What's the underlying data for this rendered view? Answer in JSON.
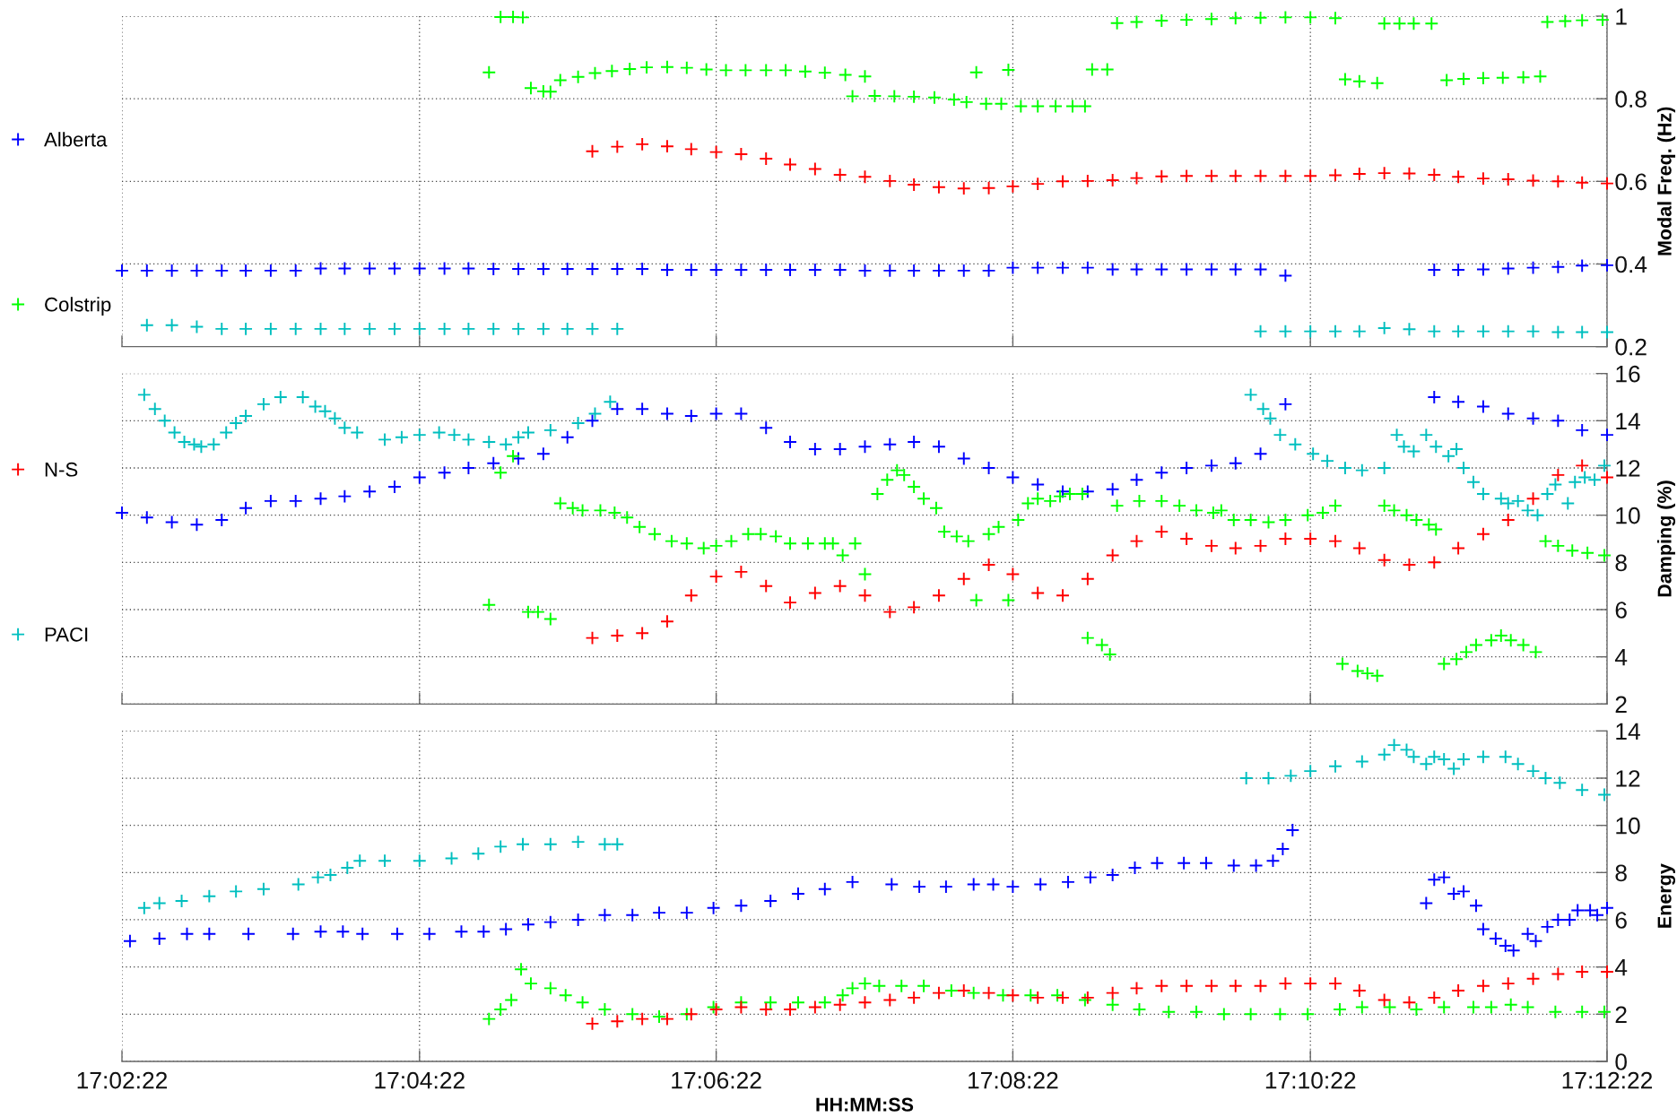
{
  "chart_data": [
    {
      "type": "scatter",
      "ylabel": "Modal Freq. (Hz)",
      "marker": "cross",
      "grid": true,
      "legend": "left",
      "tick_labels": "y",
      "xlim": [
        17.0394,
        17.2061
      ],
      "xticks": [
        {
          "value": 17.0394,
          "label": null
        },
        {
          "value": 17.0728,
          "label": null
        },
        {
          "value": 17.1061,
          "label": null
        },
        {
          "value": 17.1394,
          "label": null
        },
        {
          "value": 17.1728,
          "label": null
        },
        {
          "value": 17.2061,
          "label": null
        }
      ],
      "ylim": [
        0.2,
        1
      ],
      "yticks": [
        0.2,
        0.4,
        0.6,
        0.8,
        1
      ],
      "x": [
        17.0394,
        17.0422,
        17.045,
        17.0478,
        17.0506,
        17.0533,
        17.0561,
        17.0589,
        17.0617,
        17.0644,
        17.0672,
        17.07,
        17.0728,
        17.0756,
        17.0783,
        17.0811,
        17.0839,
        17.0867,
        17.0894,
        17.0922,
        17.095,
        17.0978,
        17.1006,
        17.1033,
        17.1061,
        17.1089,
        17.1117,
        17.1144,
        17.1172,
        17.12,
        17.1228,
        17.1256,
        17.1283,
        17.1311,
        17.1339,
        17.1367,
        17.1394,
        17.1422,
        17.145,
        17.1478,
        17.1506,
        17.1533,
        17.1561,
        17.1589,
        17.1617,
        17.1644,
        17.1672,
        17.17,
        17.1728,
        17.1756,
        17.1783,
        17.1811,
        17.1839,
        17.1867,
        17.1894,
        17.1922,
        17.195,
        17.1978,
        17.2006,
        17.2033,
        17.2061
      ],
      "series": [
        {
          "name": "Alberta",
          "color": "#0000ff",
          "values": [
            0.384,
            0.384,
            0.384,
            0.384,
            0.384,
            0.384,
            0.384,
            0.384,
            0.389,
            0.389,
            0.389,
            0.389,
            0.389,
            0.389,
            0.389,
            0.388,
            0.388,
            0.388,
            0.388,
            0.388,
            0.388,
            0.388,
            0.386,
            0.386,
            0.386,
            0.386,
            0.386,
            0.386,
            0.386,
            0.386,
            0.384,
            0.384,
            0.384,
            0.384,
            0.384,
            0.384,
            0.391,
            0.391,
            0.391,
            0.391,
            0.387,
            0.387,
            0.387,
            0.387,
            0.387,
            0.387,
            0.387,
            0.372,
            null,
            null,
            null,
            null,
            null,
            0.386,
            0.386,
            0.387,
            0.389,
            0.391,
            0.393,
            0.396,
            0.397
          ]
        },
        {
          "name": "Colstrip",
          "color": "#00ff00",
          "x": [
            17.0806,
            17.0819,
            17.0833,
            17.0844,
            17.0853,
            17.0867,
            17.0875,
            17.0886,
            17.0906,
            17.0925,
            17.0944,
            17.0964,
            17.0983,
            17.1006,
            17.1028,
            17.105,
            17.1072,
            17.1094,
            17.1117,
            17.1139,
            17.1161,
            17.1183,
            17.1206,
            17.1214,
            17.1228,
            17.1239,
            17.1261,
            17.1283,
            17.1306,
            17.1328,
            17.1342,
            17.1353,
            17.1364,
            17.1381,
            17.1389,
            17.1403,
            17.1422,
            17.1442,
            17.1461,
            17.1475,
            17.1483,
            17.15,
            17.1511,
            17.1533,
            17.1561,
            17.1589,
            17.1617,
            17.1644,
            17.1672,
            17.17,
            17.1728,
            17.1756,
            17.1767,
            17.1783,
            17.1803,
            17.1811,
            17.1828,
            17.1844,
            17.1864,
            17.1881,
            17.19,
            17.1922,
            17.1944,
            17.1967,
            17.1986,
            17.1994,
            17.2014,
            17.2033,
            17.2056
          ],
          "values": [
            0.864,
            0.998,
            0.998,
            0.997,
            0.826,
            0.818,
            0.817,
            0.845,
            0.853,
            0.862,
            0.867,
            0.872,
            0.876,
            0.877,
            0.875,
            0.871,
            0.869,
            0.869,
            0.869,
            0.869,
            0.866,
            0.863,
            0.858,
            0.806,
            0.854,
            0.807,
            0.806,
            0.805,
            0.803,
            0.798,
            0.792,
            0.864,
            0.788,
            0.788,
            0.87,
            0.782,
            0.782,
            0.782,
            0.782,
            0.782,
            0.871,
            0.871,
            0.983,
            0.986,
            0.989,
            0.991,
            0.993,
            0.995,
            0.996,
            0.997,
            0.997,
            0.995,
            0.847,
            0.842,
            0.838,
            0.982,
            0.982,
            0.982,
            0.982,
            0.845,
            0.848,
            0.85,
            0.851,
            0.852,
            0.854,
            0.986,
            0.988,
            0.99,
            0.991
          ]
        },
        {
          "name": "N-S",
          "color": "#ff0000",
          "values": [
            null,
            null,
            null,
            null,
            null,
            null,
            null,
            null,
            null,
            null,
            null,
            null,
            null,
            null,
            null,
            null,
            null,
            null,
            null,
            0.673,
            0.684,
            0.69,
            0.685,
            0.678,
            0.671,
            0.666,
            0.655,
            0.641,
            0.63,
            0.616,
            0.611,
            0.601,
            0.592,
            0.586,
            0.583,
            0.584,
            0.588,
            0.594,
            0.6,
            0.601,
            0.603,
            0.608,
            0.612,
            0.613,
            0.613,
            0.613,
            0.613,
            0.613,
            0.613,
            0.615,
            0.618,
            0.62,
            0.619,
            0.616,
            0.611,
            0.607,
            0.605,
            0.602,
            0.6,
            0.597,
            0.595
          ]
        },
        {
          "name": "PACI",
          "color": "#00bfbf",
          "values": [
            null,
            0.252,
            0.252,
            0.248,
            0.243,
            0.243,
            0.243,
            0.243,
            0.243,
            0.243,
            0.243,
            0.243,
            0.243,
            0.243,
            0.243,
            0.243,
            0.243,
            0.243,
            0.243,
            0.243,
            0.243,
            null,
            null,
            null,
            null,
            null,
            null,
            null,
            null,
            null,
            null,
            null,
            null,
            null,
            null,
            null,
            null,
            null,
            null,
            null,
            null,
            null,
            null,
            null,
            null,
            null,
            0.237,
            0.237,
            0.237,
            0.237,
            0.237,
            0.245,
            0.242,
            0.237,
            0.237,
            0.237,
            0.237,
            0.237,
            0.235,
            0.235,
            0.235
          ]
        }
      ]
    },
    {
      "type": "scatter",
      "ylabel": "Damping (%)",
      "marker": "cross",
      "grid": true,
      "tick_labels": "y",
      "xlim": [
        17.0394,
        17.2061
      ],
      "xticks": [
        {
          "value": 17.0394,
          "label": null
        },
        {
          "value": 17.0728,
          "label": null
        },
        {
          "value": 17.1061,
          "label": null
        },
        {
          "value": 17.1394,
          "label": null
        },
        {
          "value": 17.1728,
          "label": null
        },
        {
          "value": 17.2061,
          "label": null
        }
      ],
      "ylim": [
        2,
        16
      ],
      "yticks": [
        2,
        4,
        6,
        8,
        10,
        12,
        14,
        16
      ],
      "x": [
        17.0394,
        17.0422,
        17.045,
        17.0478,
        17.0506,
        17.0533,
        17.0561,
        17.0589,
        17.0617,
        17.0644,
        17.0672,
        17.07,
        17.0728,
        17.0756,
        17.0783,
        17.0811,
        17.0839,
        17.0867,
        17.0894,
        17.0922,
        17.095,
        17.0978,
        17.1006,
        17.1033,
        17.1061,
        17.1089,
        17.1117,
        17.1144,
        17.1172,
        17.12,
        17.1228,
        17.1256,
        17.1283,
        17.1311,
        17.1339,
        17.1367,
        17.1394,
        17.1422,
        17.145,
        17.1478,
        17.1506,
        17.1533,
        17.1561,
        17.1589,
        17.1617,
        17.1644,
        17.1672,
        17.17,
        17.1728,
        17.1756,
        17.1783,
        17.1811,
        17.1839,
        17.1867,
        17.1894,
        17.1922,
        17.195,
        17.1978,
        17.2006,
        17.2033,
        17.2061
      ],
      "series": [
        {
          "color": "#0000ff",
          "values": [
            10.1,
            9.9,
            9.7,
            9.6,
            9.8,
            10.3,
            10.6,
            10.6,
            10.7,
            10.8,
            11.0,
            11.2,
            11.6,
            11.8,
            12.0,
            12.2,
            12.4,
            12.6,
            13.3,
            14.0,
            14.5,
            14.5,
            14.3,
            14.2,
            14.3,
            14.3,
            13.7,
            13.1,
            12.8,
            12.8,
            12.9,
            13.0,
            13.1,
            12.9,
            12.4,
            12.0,
            11.6,
            11.3,
            11.0,
            11.0,
            11.1,
            11.5,
            11.8,
            12.0,
            12.1,
            12.2,
            12.6,
            14.7,
            null,
            null,
            null,
            null,
            null,
            15.0,
            14.8,
            14.6,
            14.3,
            14.1,
            14.0,
            13.6,
            13.4
          ]
        },
        {
          "color": "#00ff00",
          "x": [
            17.0806,
            17.0819,
            17.0833,
            17.085,
            17.0861,
            17.0875,
            17.0886,
            17.09,
            17.0911,
            17.0931,
            17.0947,
            17.0961,
            17.0975,
            17.0992,
            17.1011,
            17.1028,
            17.1047,
            17.1061,
            17.1078,
            17.1097,
            17.1111,
            17.1128,
            17.1144,
            17.1164,
            17.1183,
            17.1192,
            17.1203,
            17.1217,
            17.1228,
            17.1242,
            17.1253,
            17.1264,
            17.1272,
            17.1283,
            17.1294,
            17.1308,
            17.1317,
            17.1331,
            17.1344,
            17.1353,
            17.1367,
            17.1378,
            17.1389,
            17.14,
            17.1411,
            17.1422,
            17.1436,
            17.1447,
            17.1458,
            17.1472,
            17.1478,
            17.1494,
            17.1503,
            17.1511,
            17.1536,
            17.1561,
            17.1581,
            17.16,
            17.1619,
            17.1628,
            17.1642,
            17.1661,
            17.1681,
            17.17,
            17.1725,
            17.1742,
            17.1756,
            17.1764,
            17.1781,
            17.1792,
            17.1803,
            17.1811,
            17.1822,
            17.1836,
            17.1847,
            17.1861,
            17.1869,
            17.1878,
            17.1892,
            17.1903,
            17.1914,
            17.1931,
            17.1942,
            17.1953,
            17.1967,
            17.1981,
            17.1992,
            17.2006,
            17.2022,
            17.2039,
            17.2058
          ],
          "values": [
            6.2,
            11.8,
            12.5,
            5.9,
            5.9,
            5.6,
            10.5,
            10.3,
            10.2,
            10.2,
            10.1,
            9.9,
            9.5,
            9.2,
            8.9,
            8.8,
            8.6,
            8.7,
            8.9,
            9.2,
            9.2,
            9.1,
            8.8,
            8.8,
            8.8,
            8.8,
            8.3,
            8.8,
            7.5,
            10.9,
            11.5,
            11.9,
            11.7,
            11.2,
            10.7,
            10.3,
            9.3,
            9.1,
            8.9,
            6.4,
            9.2,
            9.5,
            6.4,
            9.8,
            10.5,
            10.7,
            10.6,
            10.8,
            10.9,
            10.9,
            4.8,
            4.5,
            4.1,
            10.4,
            10.6,
            10.6,
            10.4,
            10.2,
            10.1,
            10.2,
            9.8,
            9.8,
            9.7,
            9.8,
            10.0,
            10.1,
            10.4,
            3.7,
            3.4,
            3.3,
            3.2,
            10.4,
            10.2,
            10.0,
            9.8,
            9.6,
            9.4,
            3.7,
            3.9,
            4.2,
            4.5,
            4.7,
            4.9,
            4.7,
            4.5,
            4.2,
            8.9,
            8.7,
            8.5,
            8.4,
            8.3
          ]
        },
        {
          "color": "#ff0000",
          "values": [
            null,
            null,
            null,
            null,
            null,
            null,
            null,
            null,
            null,
            null,
            null,
            null,
            null,
            null,
            null,
            null,
            null,
            null,
            null,
            4.8,
            4.9,
            5.0,
            5.5,
            6.6,
            7.4,
            7.6,
            7.0,
            6.3,
            6.7,
            7.0,
            6.6,
            5.9,
            6.1,
            6.6,
            7.3,
            7.9,
            7.5,
            6.7,
            6.6,
            7.3,
            8.3,
            8.9,
            9.3,
            9.0,
            8.7,
            8.6,
            8.7,
            9.0,
            9.0,
            8.9,
            8.6,
            8.1,
            7.9,
            8.0,
            8.6,
            9.2,
            9.8,
            10.7,
            11.7,
            12.1,
            11.6
          ]
        },
        {
          "color": "#00bfbf",
          "x": [
            17.0419,
            17.0431,
            17.0442,
            17.0453,
            17.0464,
            17.0475,
            17.0483,
            17.0497,
            17.0511,
            17.0522,
            17.0533,
            17.0553,
            17.0572,
            17.0597,
            17.0611,
            17.0622,
            17.0633,
            17.0644,
            17.0658,
            17.0689,
            17.0708,
            17.0728,
            17.075,
            17.0767,
            17.0783,
            17.0806,
            17.0825,
            17.0839,
            17.085,
            17.0875,
            17.0906,
            17.0925,
            17.0942,
            17.1661,
            17.1675,
            17.1683,
            17.1694,
            17.1711,
            17.1731,
            17.1747,
            17.1767,
            17.1786,
            17.1811,
            17.1825,
            17.1833,
            17.1844,
            17.1858,
            17.1869,
            17.1883,
            17.1892,
            17.19,
            17.1911,
            17.1922,
            17.1942,
            17.195,
            17.1961,
            17.1972,
            17.1983,
            17.1994,
            17.2003,
            17.2017,
            17.2025,
            17.2036,
            17.2047,
            17.2058
          ],
          "values": [
            15.1,
            14.5,
            14.0,
            13.5,
            13.1,
            13.0,
            12.9,
            13.0,
            13.5,
            13.9,
            14.2,
            14.7,
            15.0,
            15.0,
            14.6,
            14.4,
            14.1,
            13.7,
            13.5,
            13.2,
            13.3,
            13.4,
            13.5,
            13.4,
            13.2,
            13.1,
            13.0,
            13.3,
            13.5,
            13.6,
            13.9,
            14.3,
            14.8,
            15.1,
            14.5,
            14.1,
            13.4,
            13.0,
            12.6,
            12.3,
            12.0,
            11.9,
            12.0,
            13.4,
            12.9,
            12.7,
            13.4,
            12.9,
            12.5,
            12.8,
            12.0,
            11.4,
            10.9,
            10.7,
            10.5,
            10.6,
            10.2,
            10.0,
            10.9,
            11.3,
            10.5,
            11.4,
            11.6,
            11.5,
            12.1
          ]
        }
      ]
    },
    {
      "type": "scatter",
      "xlabel": "HH:MM:SS",
      "ylabel": "Energy",
      "marker": "cross",
      "grid": true,
      "xlim": [
        17.0394,
        17.2061
      ],
      "xticks": [
        {
          "value": 17.0394,
          "label": "17:02:22"
        },
        {
          "value": 17.0728,
          "label": "17:04:22"
        },
        {
          "value": 17.1061,
          "label": "17:06:22"
        },
        {
          "value": 17.1394,
          "label": "17:08:22"
        },
        {
          "value": 17.1728,
          "label": "17:10:22"
        },
        {
          "value": 17.2061,
          "label": "17:12:22"
        }
      ],
      "ylim": [
        0,
        14
      ],
      "yticks": [
        0,
        2,
        4,
        6,
        8,
        10,
        12,
        14
      ],
      "series": [
        {
          "color": "#0000ff",
          "x": [
            17.0403,
            17.0436,
            17.0467,
            17.0492,
            17.0536,
            17.0586,
            17.0617,
            17.0642,
            17.0664,
            17.0703,
            17.0739,
            17.0775,
            17.08,
            17.0825,
            17.085,
            17.0875,
            17.0906,
            17.0936,
            17.0967,
            17.0997,
            17.1028,
            17.1058,
            17.1089,
            17.1122,
            17.1153,
            17.1183,
            17.1214,
            17.1258,
            17.1289,
            17.1319,
            17.135,
            17.1372,
            17.1394,
            17.1425,
            17.1456,
            17.1481,
            17.1506,
            17.1531,
            17.1556,
            17.1586,
            17.1611,
            17.1642,
            17.1667,
            17.1686,
            17.1697,
            17.1708,
            17.1858,
            17.1867,
            17.1878,
            17.1889,
            17.19,
            17.1914,
            17.1922,
            17.1936,
            17.1947,
            17.1956,
            17.1972,
            17.1981,
            17.1994,
            17.2006,
            17.2019,
            17.2028,
            17.2042,
            17.205,
            17.2061
          ],
          "values": [
            5.1,
            5.2,
            5.4,
            5.4,
            5.4,
            5.4,
            5.5,
            5.5,
            5.4,
            5.4,
            5.4,
            5.5,
            5.5,
            5.6,
            5.8,
            5.9,
            6.0,
            6.2,
            6.2,
            6.3,
            6.3,
            6.5,
            6.6,
            6.8,
            7.1,
            7.3,
            7.6,
            7.5,
            7.4,
            7.4,
            7.5,
            7.5,
            7.4,
            7.5,
            7.6,
            7.8,
            7.9,
            8.2,
            8.4,
            8.4,
            8.4,
            8.3,
            8.3,
            8.5,
            9.0,
            9.8,
            6.7,
            7.7,
            7.8,
            7.1,
            7.2,
            6.6,
            5.6,
            5.2,
            4.9,
            4.7,
            5.4,
            5.1,
            5.7,
            6.0,
            6.0,
            6.4,
            6.4,
            6.2,
            6.5
          ]
        },
        {
          "color": "#00ff00",
          "x": [
            17.0806,
            17.0819,
            17.0831,
            17.0842,
            17.0853,
            17.0875,
            17.0892,
            17.0911,
            17.0936,
            17.0967,
            17.0997,
            17.1028,
            17.1058,
            17.1089,
            17.1122,
            17.1153,
            17.1183,
            17.1203,
            17.1214,
            17.1228,
            17.1244,
            17.1269,
            17.1294,
            17.1325,
            17.135,
            17.1383,
            17.1414,
            17.1444,
            17.1475,
            17.1506,
            17.1536,
            17.1569,
            17.16,
            17.1631,
            17.1661,
            17.1694,
            17.1725,
            17.1761,
            17.1786,
            17.1817,
            17.1847,
            17.1878,
            17.1911,
            17.1931,
            17.1953,
            17.1972,
            17.2003,
            17.2033,
            17.2058
          ],
          "values": [
            1.8,
            2.2,
            2.6,
            3.9,
            3.3,
            3.1,
            2.8,
            2.5,
            2.2,
            2.0,
            1.9,
            2.0,
            2.3,
            2.5,
            2.5,
            2.5,
            2.5,
            2.8,
            3.1,
            3.3,
            3.2,
            3.2,
            3.2,
            3.0,
            2.9,
            2.8,
            2.8,
            2.8,
            2.6,
            2.4,
            2.2,
            2.1,
            2.1,
            2.0,
            2.0,
            2.0,
            2.0,
            2.2,
            2.3,
            2.3,
            2.2,
            2.3,
            2.3,
            2.3,
            2.4,
            2.3,
            2.1,
            2.1,
            2.1
          ]
        },
        {
          "color": "#ff0000",
          "x": [
            17.0922,
            17.095,
            17.0978,
            17.1006,
            17.1033,
            17.1061,
            17.1089,
            17.1117,
            17.1144,
            17.1172,
            17.12,
            17.1228,
            17.1256,
            17.1283,
            17.1311,
            17.1339,
            17.1367,
            17.1394,
            17.1422,
            17.145,
            17.1478,
            17.1506,
            17.1533,
            17.1561,
            17.1589,
            17.1617,
            17.1644,
            17.1672,
            17.17,
            17.1728,
            17.1756,
            17.1783,
            17.1811,
            17.1839,
            17.1867,
            17.1894,
            17.1922,
            17.195,
            17.1978,
            17.2006,
            17.2033,
            17.2061
          ],
          "values": [
            1.6,
            1.7,
            1.8,
            1.8,
            2.0,
            2.2,
            2.3,
            2.2,
            2.2,
            2.3,
            2.4,
            2.5,
            2.6,
            2.7,
            2.9,
            3.0,
            2.9,
            2.8,
            2.7,
            2.7,
            2.7,
            2.9,
            3.1,
            3.2,
            3.2,
            3.2,
            3.2,
            3.2,
            3.3,
            3.3,
            3.3,
            3.0,
            2.6,
            2.5,
            2.7,
            3.0,
            3.2,
            3.3,
            3.5,
            3.7,
            3.8,
            3.8
          ]
        },
        {
          "color": "#00bfbf",
          "x": [
            17.0419,
            17.0436,
            17.0461,
            17.0492,
            17.0522,
            17.0553,
            17.0592,
            17.0614,
            17.0628,
            17.0647,
            17.0661,
            17.0689,
            17.0728,
            17.0764,
            17.0794,
            17.0819,
            17.0844,
            17.0875,
            17.0906,
            17.0936,
            17.095,
            17.1656,
            17.1681,
            17.1706,
            17.1728,
            17.1756,
            17.1786,
            17.1811,
            17.1822,
            17.1836,
            17.1844,
            17.1858,
            17.1867,
            17.1878,
            17.1889,
            17.19,
            17.1922,
            17.1947,
            17.1961,
            17.1978,
            17.1992,
            17.2008,
            17.2033,
            17.2058
          ],
          "values": [
            6.5,
            6.7,
            6.8,
            7.0,
            7.2,
            7.3,
            7.5,
            7.8,
            7.9,
            8.2,
            8.5,
            8.5,
            8.5,
            8.6,
            8.8,
            9.1,
            9.2,
            9.2,
            9.3,
            9.2,
            9.2,
            12.0,
            12.0,
            12.1,
            12.3,
            12.5,
            12.7,
            13.0,
            13.4,
            13.2,
            12.9,
            12.6,
            12.9,
            12.8,
            12.4,
            12.8,
            12.9,
            12.9,
            12.6,
            12.3,
            12.0,
            11.8,
            11.5,
            11.3
          ]
        }
      ]
    }
  ]
}
